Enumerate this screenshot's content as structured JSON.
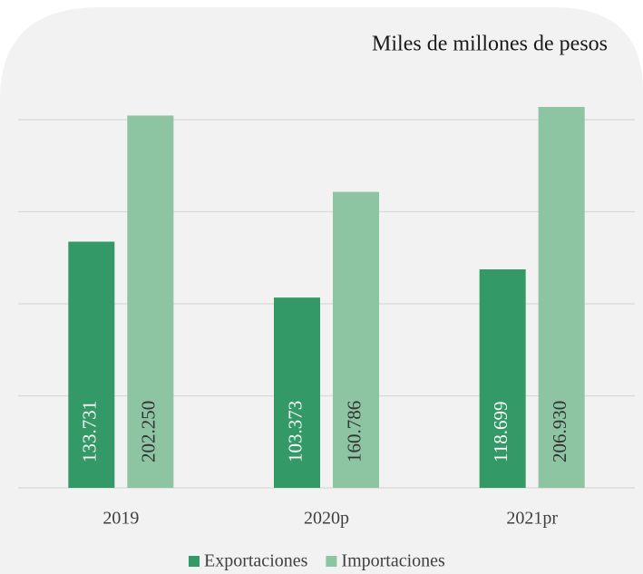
{
  "chart_data": {
    "type": "bar",
    "title": "Miles de millones de pesos",
    "categories": [
      "2019",
      "2020p",
      "2021pr"
    ],
    "series": [
      {
        "name": "Exportaciones",
        "color": "#339966",
        "values": [
          133731,
          103373,
          118699
        ],
        "value_labels": [
          "133.731",
          "103.373",
          "118.699"
        ]
      },
      {
        "name": "Importaciones",
        "color": "#8dc4a2",
        "values": [
          202250,
          160786,
          206930
        ],
        "value_labels": [
          "202.250",
          "160.786",
          "206.930"
        ]
      }
    ],
    "ylim": [
      0,
      250000
    ],
    "yticks": [
      0,
      50000,
      100000,
      150000,
      200000
    ],
    "grid": true,
    "legend": "bottom"
  }
}
